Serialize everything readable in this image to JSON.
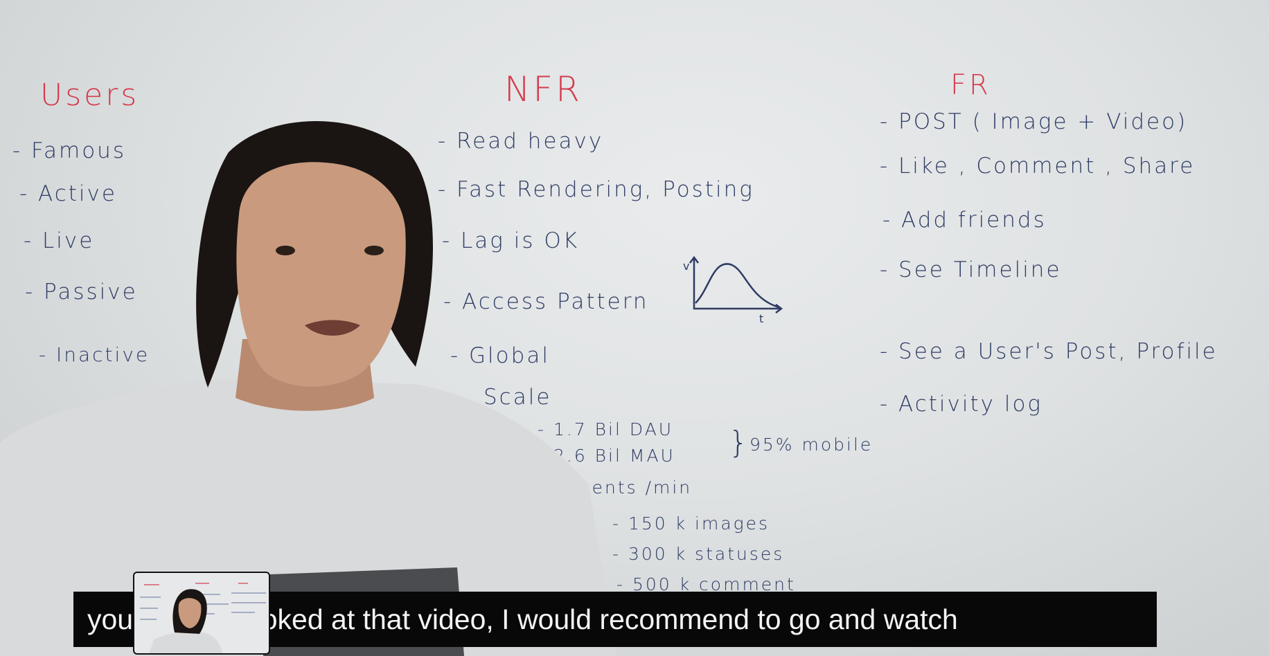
{
  "users": {
    "title": "Users",
    "items": [
      "- Famous",
      "- Active",
      "- Live",
      "- Passive",
      "- Inactive"
    ]
  },
  "nfr": {
    "title": "NFR",
    "items": [
      "- Read heavy",
      "- Fast Rendering, Posting",
      "- Lag is OK",
      "- Access Pattern",
      "- Global",
      "Scale"
    ],
    "graph_axis_v": "v",
    "graph_axis_t": "t",
    "scale_lines": [
      "- 1.7   Bil   DAU",
      "- 2.6   Bil   MAU"
    ],
    "scale_note": "95% mobile",
    "events_title": "Events /min",
    "events": [
      "- 150 k images",
      "- 300 k statuses",
      "- 500 k comment"
    ]
  },
  "fr": {
    "title": "FR",
    "items": [
      "- POST ( Image + Video)",
      "- Like , Comment , Share",
      "- Add friends",
      "- See Timeline",
      "- See a User's Post, Profile",
      "- Activity log"
    ]
  },
  "subtitle": "you haven't looked at that video, I would recommend to go and watch",
  "colors": {
    "marker_red": "#d43a4c",
    "marker_blue": "#2e3b63",
    "subtitle_bg": "#080808"
  }
}
